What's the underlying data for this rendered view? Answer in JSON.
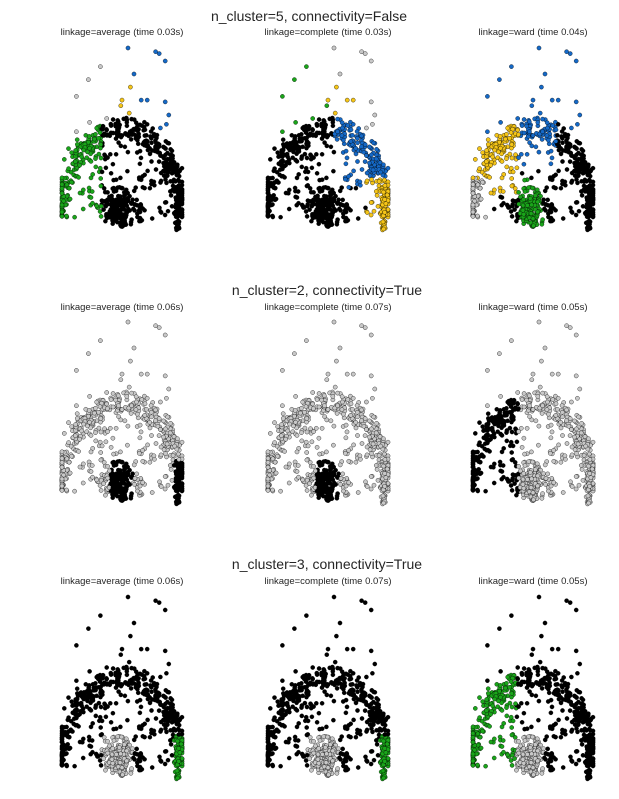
{
  "figure": {
    "palette": {
      "black": "#000000",
      "gray": "#c8c8c8",
      "green": "#1aa51a",
      "yellow": "#f5c518",
      "blue": "#1569c7"
    }
  },
  "chart_data": [
    {
      "type": "scatter",
      "title": "n_cluster=5, connectivity=False",
      "n_clusters": 5,
      "connectivity": false,
      "panels": [
        {
          "title": "linkage=average (time 0.03s)",
          "linkage": "average",
          "time_s": 0.03,
          "cluster_colors": [
            "black",
            "green",
            "yellow",
            "blue",
            "gray"
          ]
        },
        {
          "title": "linkage=complete (time 0.03s)",
          "linkage": "complete",
          "time_s": 0.03,
          "cluster_colors": [
            "black",
            "blue",
            "yellow",
            "green",
            "gray"
          ]
        },
        {
          "title": "linkage=ward (time 0.04s)",
          "linkage": "ward",
          "time_s": 0.04,
          "cluster_colors": [
            "black",
            "blue",
            "yellow",
            "green",
            "gray"
          ]
        }
      ]
    },
    {
      "type": "scatter",
      "title": "n_cluster=2, connectivity=True",
      "n_clusters": 2,
      "connectivity": true,
      "panels": [
        {
          "title": "linkage=average (time 0.06s)",
          "linkage": "average",
          "time_s": 0.06,
          "cluster_colors": [
            "gray",
            "black"
          ]
        },
        {
          "title": "linkage=complete (time 0.07s)",
          "linkage": "complete",
          "time_s": 0.07,
          "cluster_colors": [
            "gray",
            "black"
          ]
        },
        {
          "title": "linkage=ward (time 0.05s)",
          "linkage": "ward",
          "time_s": 0.05,
          "cluster_colors": [
            "gray",
            "black"
          ]
        }
      ]
    },
    {
      "type": "scatter",
      "title": "n_cluster=3, connectivity=True",
      "n_clusters": 3,
      "connectivity": true,
      "panels": [
        {
          "title": "linkage=average (time 0.06s)",
          "linkage": "average",
          "time_s": 0.06,
          "cluster_colors": [
            "black",
            "gray",
            "green"
          ]
        },
        {
          "title": "linkage=complete (time 0.07s)",
          "linkage": "complete",
          "time_s": 0.07,
          "cluster_colors": [
            "black",
            "gray",
            "green"
          ]
        },
        {
          "title": "linkage=ward (time 0.05s)",
          "linkage": "ward",
          "time_s": 0.05,
          "cluster_colors": [
            "black",
            "gray",
            "green"
          ]
        }
      ]
    }
  ]
}
